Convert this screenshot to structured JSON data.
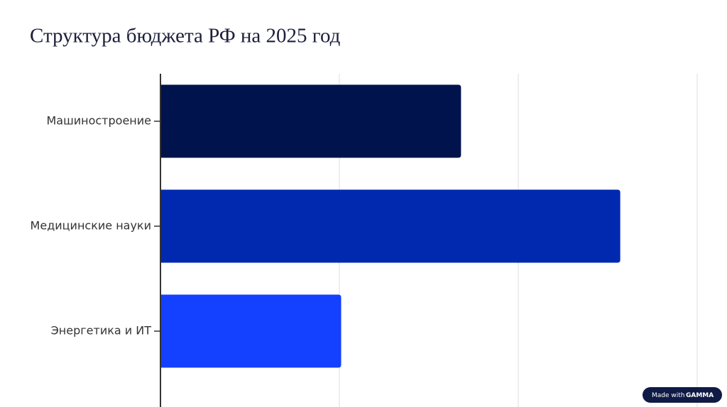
{
  "chart_data": {
    "type": "hbar",
    "title": "Структура бюджета РФ на 2025 год",
    "categories": [
      "Машиностроение",
      "Медицинские науки",
      "Энергетика и ИТ"
    ],
    "values": [
      1.68,
      2.57,
      1.01
    ],
    "colors": [
      "#00134d",
      "#0029b0",
      "#1440ff"
    ],
    "xlim": [
      0,
      3
    ],
    "xticks": [
      1,
      2,
      3
    ],
    "grid": true
  },
  "badge": {
    "prefix": "Made with",
    "brand": "GAMMA"
  }
}
